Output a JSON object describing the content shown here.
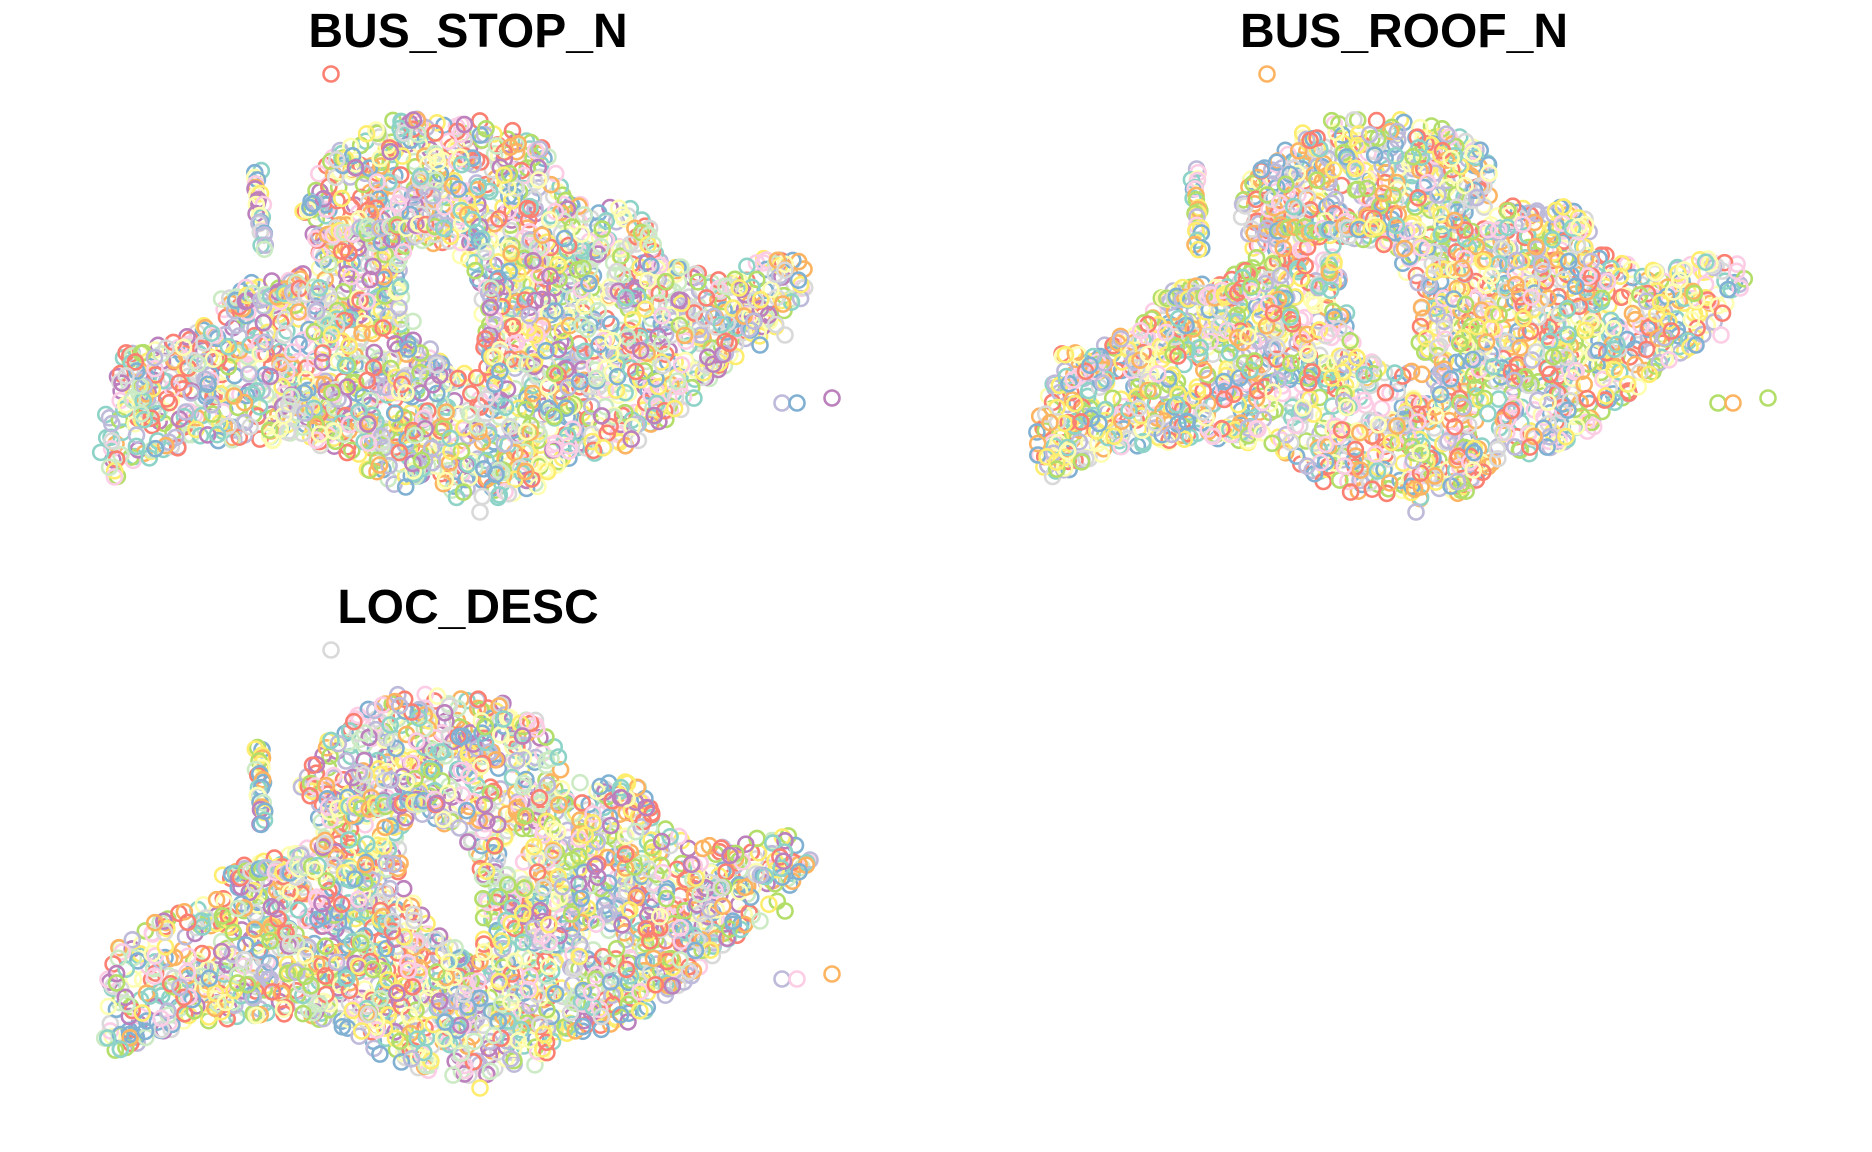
{
  "chart_data": [
    {
      "type": "scatter",
      "title": "BUS_STOP_N",
      "marker": "open-circle",
      "legend": "none",
      "grid": false,
      "axes": false,
      "palette": [
        "#fb8072",
        "#fdb462",
        "#b3de69",
        "#fccde5",
        "#bebada",
        "#8dd3c7",
        "#ffffb3",
        "#80b1d3",
        "#d9d9d9",
        "#bc80bd",
        "#ccebc5",
        "#ffed6f"
      ],
      "highlight": {
        "color": "#fb8072",
        "source": "lone-marker-under-title"
      }
    },
    {
      "type": "scatter",
      "title": "BUS_ROOF_N",
      "marker": "open-circle",
      "legend": "none",
      "grid": false,
      "axes": false,
      "palette": [
        "#fdb462",
        "#fccde5",
        "#ffed6f",
        "#8dd3c7",
        "#fb8072",
        "#80b1d3",
        "#bebada",
        "#b3de69",
        "#ffffb3",
        "#d9d9d9"
      ],
      "highlight": {
        "color": "#fdb462",
        "source": "lone-marker-under-title"
      }
    },
    {
      "type": "scatter",
      "title": "LOC_DESC",
      "marker": "open-circle",
      "legend": "none",
      "grid": false,
      "axes": false,
      "palette": [
        "#8dd3c7",
        "#bebada",
        "#fb8072",
        "#80b1d3",
        "#fdb462",
        "#b3de69",
        "#fccde5",
        "#d9d9d9",
        "#bc80bd",
        "#ccebc5",
        "#ffed6f",
        "#ffffb3"
      ],
      "highlight": {
        "color": "#d9d9d9",
        "source": "lone-marker-under-title"
      }
    }
  ]
}
